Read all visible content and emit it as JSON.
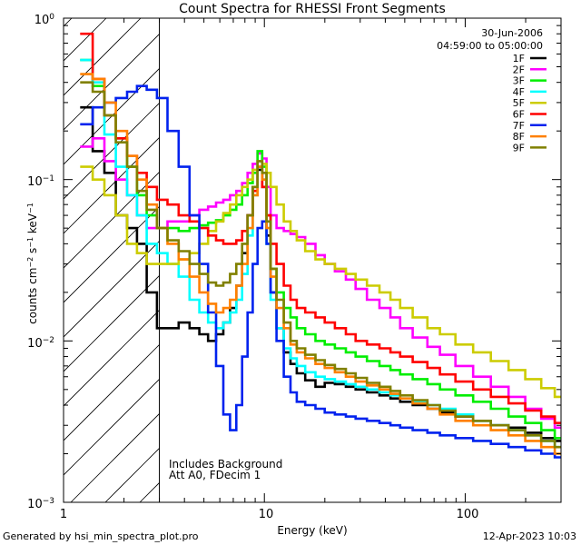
{
  "chart_data": {
    "type": "line",
    "title": "Count Spectra for RHESSI Front Segments",
    "xlabel": "Energy (keV)",
    "ylabel": "counts cm-2 s-1 keV-1",
    "xscale": "log",
    "yscale": "log",
    "xlim": [
      1,
      300
    ],
    "ylim": [
      0.001,
      1
    ],
    "x_tick_labels": [
      "1",
      "10",
      "100"
    ],
    "y_tick_labels": [
      "10^0",
      "10^-1",
      "10^-2",
      "10^-3"
    ],
    "date_label": "30-Jun-2006",
    "time_label": "04:59:00 to 05:00:00",
    "annotations": [
      "Includes Background",
      "Att A0, FDecim 1"
    ],
    "attenuator_threshold_keV": 3,
    "footer_left": "Generated by hsi_min_spectra_plot.pro",
    "footer_right": "12-Apr-2023 10:03",
    "x": [
      1.3,
      1.5,
      1.7,
      1.95,
      2.2,
      2.45,
      2.75,
      3.1,
      3.5,
      4,
      4.5,
      5,
      5.5,
      6,
      6.5,
      7,
      7.5,
      8,
      8.5,
      9,
      9.5,
      10,
      10.5,
      11,
      12,
      13,
      14,
      15,
      17,
      19,
      21,
      24,
      27,
      30,
      35,
      40,
      45,
      50,
      60,
      70,
      80,
      100,
      120,
      150,
      180,
      220,
      260,
      300
    ],
    "series": [
      {
        "name": "1F",
        "color": "#000000",
        "values": [
          0.28,
          0.15,
          0.11,
          0.06,
          0.05,
          0.04,
          0.02,
          0.012,
          0.012,
          0.013,
          0.012,
          0.011,
          0.01,
          0.011,
          0.013,
          0.016,
          0.022,
          0.035,
          0.06,
          0.09,
          0.115,
          0.09,
          0.045,
          0.02,
          0.012,
          0.0085,
          0.0072,
          0.0063,
          0.0057,
          0.0052,
          0.0055,
          0.0054,
          0.0052,
          0.005,
          0.0048,
          0.0046,
          0.0044,
          0.0042,
          0.004,
          0.0038,
          0.0036,
          0.0034,
          0.0032,
          0.003,
          0.0029,
          0.0027,
          0.0025,
          0.0024
        ]
      },
      {
        "name": "2F",
        "color": "#ff00ff",
        "values": [
          0.16,
          0.18,
          0.13,
          0.1,
          0.08,
          0.06,
          0.05,
          0.05,
          0.055,
          0.055,
          0.06,
          0.065,
          0.068,
          0.072,
          0.075,
          0.08,
          0.085,
          0.095,
          0.11,
          0.125,
          0.145,
          0.135,
          0.09,
          0.06,
          0.05,
          0.048,
          0.046,
          0.044,
          0.04,
          0.034,
          0.03,
          0.027,
          0.024,
          0.021,
          0.018,
          0.016,
          0.014,
          0.012,
          0.0105,
          0.0092,
          0.0082,
          0.007,
          0.006,
          0.0052,
          0.0045,
          0.0038,
          0.0033,
          0.0029
        ]
      },
      {
        "name": "3F",
        "color": "#00ee00",
        "values": [
          0.55,
          0.38,
          0.25,
          0.18,
          0.12,
          0.08,
          0.06,
          0.05,
          0.05,
          0.048,
          0.05,
          0.052,
          0.054,
          0.056,
          0.06,
          0.065,
          0.07,
          0.08,
          0.095,
          0.11,
          0.15,
          0.12,
          0.06,
          0.028,
          0.02,
          0.016,
          0.014,
          0.012,
          0.011,
          0.01,
          0.0095,
          0.009,
          0.0085,
          0.008,
          0.0075,
          0.007,
          0.0066,
          0.0062,
          0.0058,
          0.0054,
          0.005,
          0.0046,
          0.0042,
          0.0038,
          0.0034,
          0.0031,
          0.0028,
          0.0025
        ]
      },
      {
        "name": "4F",
        "color": "#00ffff",
        "values": [
          0.55,
          0.4,
          0.19,
          0.12,
          0.08,
          0.06,
          0.04,
          0.035,
          0.03,
          0.025,
          0.018,
          0.015,
          0.013,
          0.012,
          0.013,
          0.015,
          0.018,
          0.026,
          0.045,
          0.08,
          0.13,
          0.1,
          0.04,
          0.018,
          0.012,
          0.009,
          0.0078,
          0.007,
          0.0064,
          0.006,
          0.0058,
          0.0056,
          0.0054,
          0.0052,
          0.005,
          0.0048,
          0.0046,
          0.0044,
          0.0042,
          0.004,
          0.0038,
          0.0035,
          0.0032,
          0.003,
          0.0028,
          0.0026,
          0.0024,
          0.0022
        ]
      },
      {
        "name": "5F",
        "color": "#cccc00",
        "values": [
          0.12,
          0.1,
          0.08,
          0.06,
          0.04,
          0.035,
          0.03,
          0.03,
          0.03,
          0.032,
          0.035,
          0.04,
          0.048,
          0.055,
          0.062,
          0.07,
          0.08,
          0.09,
          0.1,
          0.115,
          0.13,
          0.125,
          0.11,
          0.09,
          0.07,
          0.055,
          0.048,
          0.042,
          0.036,
          0.032,
          0.03,
          0.028,
          0.026,
          0.024,
          0.022,
          0.02,
          0.018,
          0.016,
          0.014,
          0.012,
          0.011,
          0.0095,
          0.0085,
          0.0075,
          0.0066,
          0.0058,
          0.0051,
          0.0045
        ]
      },
      {
        "name": "6F",
        "color": "#ff0000",
        "values": [
          0.8,
          0.42,
          0.25,
          0.18,
          0.14,
          0.11,
          0.09,
          0.075,
          0.07,
          0.06,
          0.055,
          0.05,
          0.045,
          0.042,
          0.04,
          0.04,
          0.042,
          0.048,
          0.06,
          0.085,
          0.12,
          0.09,
          0.06,
          0.04,
          0.03,
          0.022,
          0.018,
          0.016,
          0.015,
          0.014,
          0.013,
          0.012,
          0.011,
          0.01,
          0.0095,
          0.009,
          0.0085,
          0.008,
          0.0074,
          0.0068,
          0.0062,
          0.0056,
          0.005,
          0.0045,
          0.0041,
          0.0037,
          0.0034,
          0.0031
        ]
      },
      {
        "name": "7F",
        "color": "#0022ee",
        "values": [
          0.22,
          0.28,
          0.3,
          0.32,
          0.35,
          0.38,
          0.36,
          0.32,
          0.2,
          0.12,
          0.06,
          0.03,
          0.015,
          0.007,
          0.0035,
          0.0028,
          0.004,
          0.008,
          0.015,
          0.03,
          0.05,
          0.055,
          0.04,
          0.02,
          0.01,
          0.006,
          0.0048,
          0.0042,
          0.004,
          0.0038,
          0.0036,
          0.0035,
          0.0034,
          0.0033,
          0.0032,
          0.0031,
          0.003,
          0.0029,
          0.0028,
          0.0027,
          0.0026,
          0.0025,
          0.0024,
          0.0023,
          0.0022,
          0.0021,
          0.002,
          0.0019
        ]
      },
      {
        "name": "8F",
        "color": "#ff8000",
        "values": [
          0.45,
          0.42,
          0.3,
          0.2,
          0.14,
          0.1,
          0.07,
          0.05,
          0.04,
          0.032,
          0.025,
          0.02,
          0.017,
          0.015,
          0.016,
          0.018,
          0.022,
          0.03,
          0.05,
          0.08,
          0.12,
          0.1,
          0.05,
          0.025,
          0.016,
          0.012,
          0.0095,
          0.0085,
          0.0078,
          0.0072,
          0.0068,
          0.0064,
          0.006,
          0.0056,
          0.0053,
          0.005,
          0.0047,
          0.0044,
          0.0041,
          0.0038,
          0.0035,
          0.0032,
          0.003,
          0.0028,
          0.0026,
          0.0024,
          0.0022,
          0.002
        ]
      },
      {
        "name": "9F",
        "color": "#808000",
        "values": [
          0.4,
          0.35,
          0.25,
          0.17,
          0.12,
          0.085,
          0.065,
          0.05,
          0.042,
          0.036,
          0.03,
          0.026,
          0.023,
          0.022,
          0.023,
          0.026,
          0.03,
          0.04,
          0.06,
          0.09,
          0.13,
          0.11,
          0.055,
          0.028,
          0.018,
          0.013,
          0.01,
          0.009,
          0.0082,
          0.0076,
          0.0071,
          0.0067,
          0.0063,
          0.0059,
          0.0055,
          0.0052,
          0.0049,
          0.0046,
          0.0043,
          0.004,
          0.0037,
          0.0034,
          0.0032,
          0.003,
          0.0028,
          0.0026,
          0.0024,
          0.0022
        ]
      }
    ]
  }
}
